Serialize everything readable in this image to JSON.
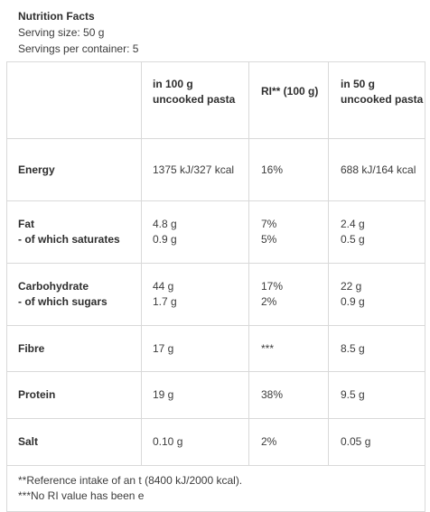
{
  "header": {
    "title": "Nutrition Facts",
    "serving_size": "Serving size: 50 g",
    "servings_per_container": "Servings per container: 5"
  },
  "table": {
    "columns": [
      {
        "line1": "",
        "line2": ""
      },
      {
        "line1": "in 100 g",
        "line2": "uncooked pasta"
      },
      {
        "line1": "RI** (100 g)",
        "line2": ""
      },
      {
        "line1": "in 50 g",
        "line2": "uncooked pasta"
      }
    ],
    "rows": [
      {
        "label": "Energy",
        "sublabel": "",
        "per100": "1375 kJ/327 kcal",
        "per100_sub": "",
        "ri": "16%",
        "ri_sub": "",
        "per50": "688 kJ/164 kcal",
        "per50_sub": ""
      },
      {
        "label": "Fat",
        "sublabel": "- of which saturates",
        "per100": "4.8 g",
        "per100_sub": "0.9 g",
        "ri": "7%",
        "ri_sub": "5%",
        "per50": "2.4 g",
        "per50_sub": "0.5 g"
      },
      {
        "label": "Carbohydrate",
        "sublabel": "- of which sugars",
        "per100": "44 g",
        "per100_sub": "1.7 g",
        "ri": "17%",
        "ri_sub": "2%",
        "per50": "22 g",
        "per50_sub": "0.9 g"
      },
      {
        "label": "Fibre",
        "sublabel": "",
        "per100": "17 g",
        "per100_sub": "",
        "ri": "***",
        "ri_sub": "",
        "per50": "8.5 g",
        "per50_sub": ""
      },
      {
        "label": "Protein",
        "sublabel": "",
        "per100": "19 g",
        "per100_sub": "",
        "ri": "38%",
        "ri_sub": "",
        "per50": "9.5 g",
        "per50_sub": ""
      },
      {
        "label": "Salt",
        "sublabel": "",
        "per100": "0.10 g",
        "per100_sub": "",
        "ri": "2%",
        "ri_sub": "",
        "per50": "0.05 g",
        "per50_sub": ""
      }
    ],
    "footnotes": [
      "**Reference intake of an t (8400 kJ/2000 kcal).",
      "***No RI value has been e"
    ]
  }
}
